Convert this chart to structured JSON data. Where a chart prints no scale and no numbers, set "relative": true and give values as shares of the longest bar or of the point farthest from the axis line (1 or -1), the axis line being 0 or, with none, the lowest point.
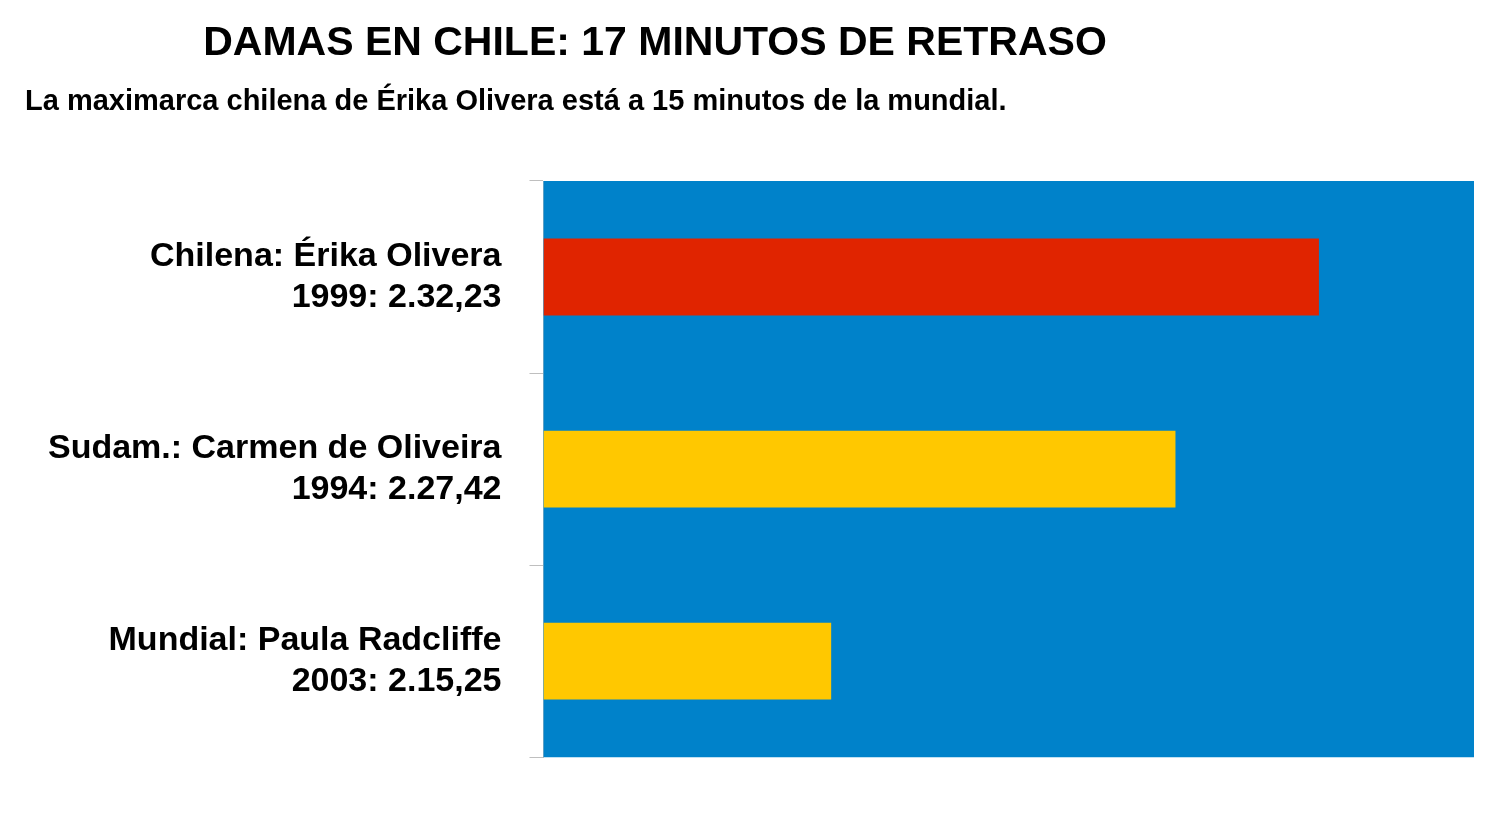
{
  "chart_data": {
    "type": "bar",
    "orientation": "horizontal",
    "relative": true,
    "title": "DAMAS EN CHILE: 17 MINUTOS DE RETRASO",
    "subtitle": "La maximarca chilena de Érika Olivera está a 15 minutos de la mundial.",
    "categories": [
      "Chilena: Érika Olivera\n1999: 2.32,23",
      "Sudam.: Carmen de Oliveira\n1994: 2.27,42",
      "Mundial: Paula Radcliffe\n2003: 2.15,25"
    ],
    "values": [
      1,
      0.815,
      0.371
    ],
    "colors": [
      "#e02400",
      "#ffc800",
      "#ffc800"
    ],
    "grid": false,
    "legend": false
  }
}
